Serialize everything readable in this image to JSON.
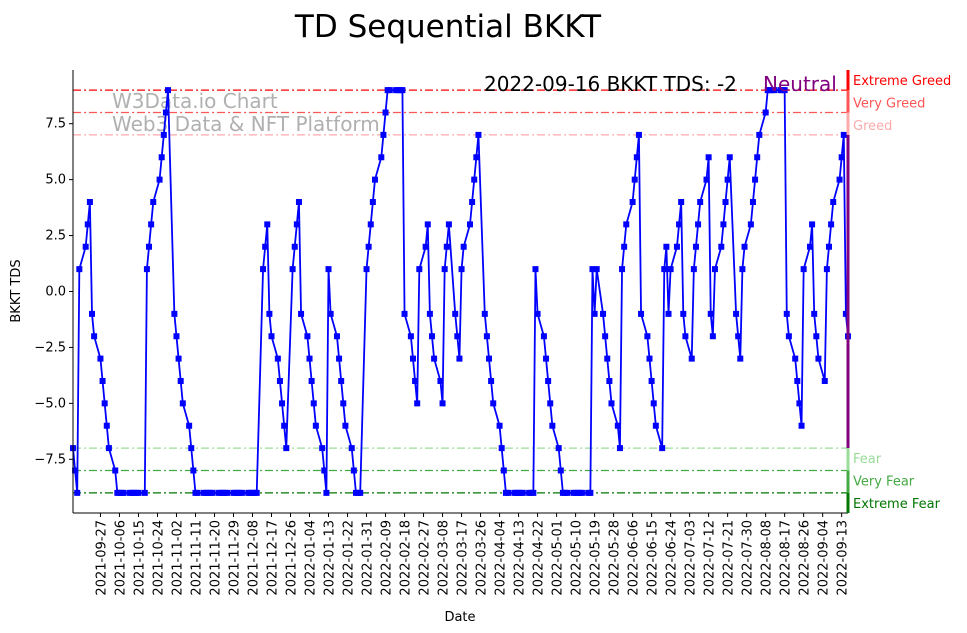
{
  "chart_data": {
    "type": "line",
    "title": "TD Sequential BKKT",
    "xlabel": "Date",
    "ylabel": "BKKT TDS",
    "ylim": [
      -9.9,
      9.9
    ],
    "x_end": "2022-09-16",
    "x_frequency": "business days",
    "yticks": [
      -7.5,
      -5.0,
      -2.5,
      0.0,
      2.5,
      5.0,
      7.5
    ],
    "ytick_labels": [
      "−7.5",
      "−5.0",
      "−2.5",
      "0.0",
      "2.5",
      "5.0",
      "7.5"
    ],
    "xtick_labels": [
      "2021-09-27",
      "2021-10-06",
      "2021-10-15",
      "2021-10-24",
      "2021-11-02",
      "2021-11-11",
      "2021-11-20",
      "2021-11-29",
      "2021-12-08",
      "2021-12-17",
      "2021-12-26",
      "2022-01-04",
      "2022-01-13",
      "2022-01-22",
      "2022-01-31",
      "2022-02-09",
      "2022-02-18",
      "2022-02-27",
      "2022-03-08",
      "2022-03-17",
      "2022-03-26",
      "2022-04-04",
      "2022-04-13",
      "2022-04-22",
      "2022-05-01",
      "2022-05-10",
      "2022-05-19",
      "2022-05-28",
      "2022-06-06",
      "2022-06-15",
      "2022-06-24",
      "2022-07-03",
      "2022-07-12",
      "2022-07-21",
      "2022-07-30",
      "2022-08-08",
      "2022-08-17",
      "2022-08-26",
      "2022-09-04",
      "2022-09-13"
    ],
    "series": [
      {
        "name": "BKKT TDS",
        "color": "#0000ff",
        "values": [
          -7,
          -8,
          -9,
          1,
          2,
          3,
          4,
          -1,
          -2,
          -3,
          -4,
          -5,
          -6,
          -7,
          -8,
          -9,
          -9,
          -9,
          -9,
          -9,
          -9,
          -9,
          -9,
          -9,
          -9,
          1,
          2,
          3,
          4,
          5,
          6,
          7,
          8,
          9,
          -1,
          -2,
          -3,
          -4,
          -5,
          -6,
          -7,
          -8,
          -9,
          -9,
          -9,
          -9,
          -9,
          -9,
          -9,
          -9,
          -9,
          -9,
          -9,
          -9,
          -9,
          -9,
          -9,
          -9,
          -9,
          -9,
          -9,
          -9,
          -9,
          -9,
          1,
          2,
          3,
          -1,
          -2,
          -3,
          -4,
          -5,
          -6,
          -7,
          1,
          2,
          3,
          4,
          -1,
          -2,
          -3,
          -4,
          -5,
          -6,
          -7,
          -8,
          -9,
          1,
          -1,
          -2,
          -3,
          -4,
          -5,
          -6,
          -7,
          -8,
          -9,
          -9,
          -9,
          1,
          2,
          3,
          4,
          5,
          6,
          7,
          8,
          9,
          9,
          9,
          9,
          9,
          9,
          -1,
          -2,
          -3,
          -4,
          -5,
          1,
          2,
          3,
          -1,
          -2,
          -3,
          -4,
          -5,
          1,
          2,
          3,
          -1,
          -2,
          -3,
          1,
          2,
          3,
          4,
          5,
          6,
          7,
          -1,
          -2,
          -3,
          -4,
          -5,
          -6,
          -7,
          -8,
          -9,
          -9,
          -9,
          -9,
          -9,
          -9,
          -9,
          -9,
          -9,
          -9,
          1,
          -1,
          -2,
          -3,
          -4,
          -5,
          -6,
          -7,
          -8,
          -9,
          -9,
          -9,
          -9,
          -9,
          -9,
          -9,
          -9,
          -9,
          -9,
          1,
          -1,
          1,
          -1,
          -2,
          -3,
          -4,
          -5,
          -6,
          -7,
          1,
          2,
          3,
          4,
          5,
          6,
          7,
          -1,
          -2,
          -3,
          -4,
          -5,
          -6,
          -7,
          1,
          2,
          -1,
          1,
          2,
          3,
          4,
          -1,
          -2,
          -3,
          1,
          2,
          3,
          4,
          5,
          6,
          -1,
          -2,
          1,
          2,
          3,
          4,
          5,
          6,
          -1,
          -2,
          -3,
          1,
          2,
          3,
          4,
          5,
          6,
          7,
          8,
          9,
          9,
          9,
          9,
          9,
          9,
          9,
          -1,
          -2,
          -3,
          -4,
          -5,
          -6,
          1,
          2,
          3,
          -1,
          -2,
          -3,
          -4,
          1,
          2,
          3,
          4,
          5,
          6,
          7,
          -1,
          -2
        ]
      }
    ],
    "reference_lines": [
      {
        "value": 9,
        "label": "Extreme Greed",
        "color": "#ff0000"
      },
      {
        "value": 8,
        "label": "Very Greed",
        "color": "#ff5555"
      },
      {
        "value": 7,
        "label": "Greed",
        "color": "#ffaaaa"
      },
      {
        "value": -7,
        "label": "Fear",
        "color": "#99dd99"
      },
      {
        "value": -8,
        "label": "Very Fear",
        "color": "#44aa44"
      },
      {
        "value": -9,
        "label": "Extreme Fear",
        "color": "#007700"
      }
    ],
    "annotation": {
      "text": "2022-09-16 BKKT TDS: -2",
      "status": "Neutral",
      "status_color": "#800080"
    },
    "watermark": [
      "W3Data.io Chart",
      "Web3 Data & NFT Platform"
    ]
  }
}
